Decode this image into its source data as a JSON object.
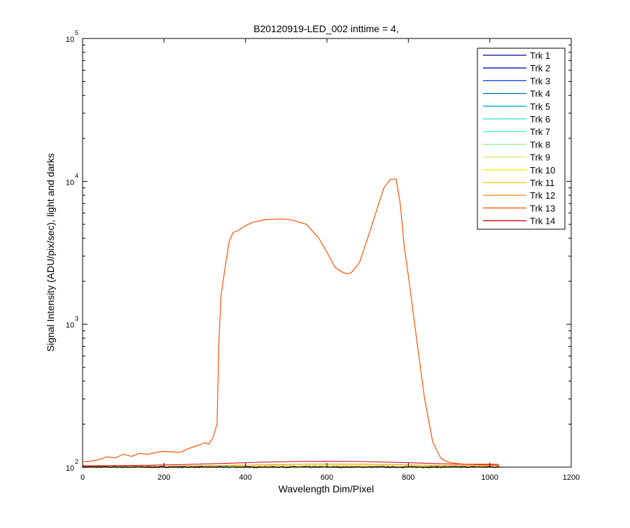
{
  "chart_data": {
    "type": "line",
    "title": "B20120919-LED_002 inttime = 4,",
    "xlabel": "Wavelength Dim/Pixel",
    "ylabel": "Signal Intensity (ADU/pix/sec), light and darks",
    "xlim": [
      0,
      1200
    ],
    "ylim": [
      100,
      100000
    ],
    "yscale": "log",
    "x_ticks": [
      "0",
      "200",
      "400",
      "600",
      "800",
      "1000",
      "1200"
    ],
    "y_ticks": [
      {
        "value": 100,
        "base": "10",
        "exp": "2"
      },
      {
        "value": 1000,
        "base": "10",
        "exp": "3"
      },
      {
        "value": 10000,
        "base": "10",
        "exp": "4"
      },
      {
        "value": 100000,
        "base": "10",
        "exp": "5"
      }
    ],
    "grid": false,
    "legend_position": "top-right",
    "series": [
      {
        "name": "Trk 1",
        "color": "#00008f"
      },
      {
        "name": "Trk 2",
        "color": "#000dbf"
      },
      {
        "name": "Trk 3",
        "color": "#0030ff"
      },
      {
        "name": "Trk 4",
        "color": "#006fa0"
      },
      {
        "name": "Trk 5",
        "color": "#00b0c0"
      },
      {
        "name": "Trk 6",
        "color": "#20e0e0"
      },
      {
        "name": "Trk 7",
        "color": "#50f0d0"
      },
      {
        "name": "Trk 8",
        "color": "#90f090"
      },
      {
        "name": "Trk 9",
        "color": "#d0f050"
      },
      {
        "name": "Trk 10",
        "color": "#f0f000"
      },
      {
        "name": "Trk 11",
        "color": "#ffc000"
      },
      {
        "name": "Trk 12",
        "color": "#ff9020"
      },
      {
        "name": "Trk 13",
        "color": "#ff5000",
        "x": [
          0,
          20,
          40,
          60,
          80,
          100,
          120,
          140,
          160,
          180,
          200,
          220,
          240,
          260,
          280,
          300,
          310,
          320,
          330,
          335,
          340,
          350,
          360,
          370,
          380,
          400,
          420,
          450,
          480,
          500,
          520,
          550,
          580,
          600,
          620,
          640,
          650,
          660,
          680,
          700,
          720,
          740,
          755,
          770,
          780,
          790,
          800,
          820,
          840,
          860,
          880,
          900,
          920,
          940,
          960,
          980,
          1000,
          1020
        ],
        "y": [
          109,
          110,
          113,
          118,
          116,
          123,
          119,
          125,
          123,
          127,
          129,
          128,
          127,
          135,
          141,
          148,
          145,
          160,
          200,
          800,
          1600,
          2500,
          3800,
          4400,
          4500,
          4900,
          5200,
          5400,
          5450,
          5450,
          5300,
          5000,
          4000,
          3200,
          2500,
          2300,
          2250,
          2300,
          2700,
          4000,
          6000,
          9000,
          10300,
          10400,
          7000,
          3500,
          2200,
          800,
          300,
          150,
          115,
          108,
          106,
          105,
          105,
          105,
          105,
          105
        ]
      },
      {
        "name": "Trk 14",
        "color": "#c80000"
      }
    ]
  }
}
